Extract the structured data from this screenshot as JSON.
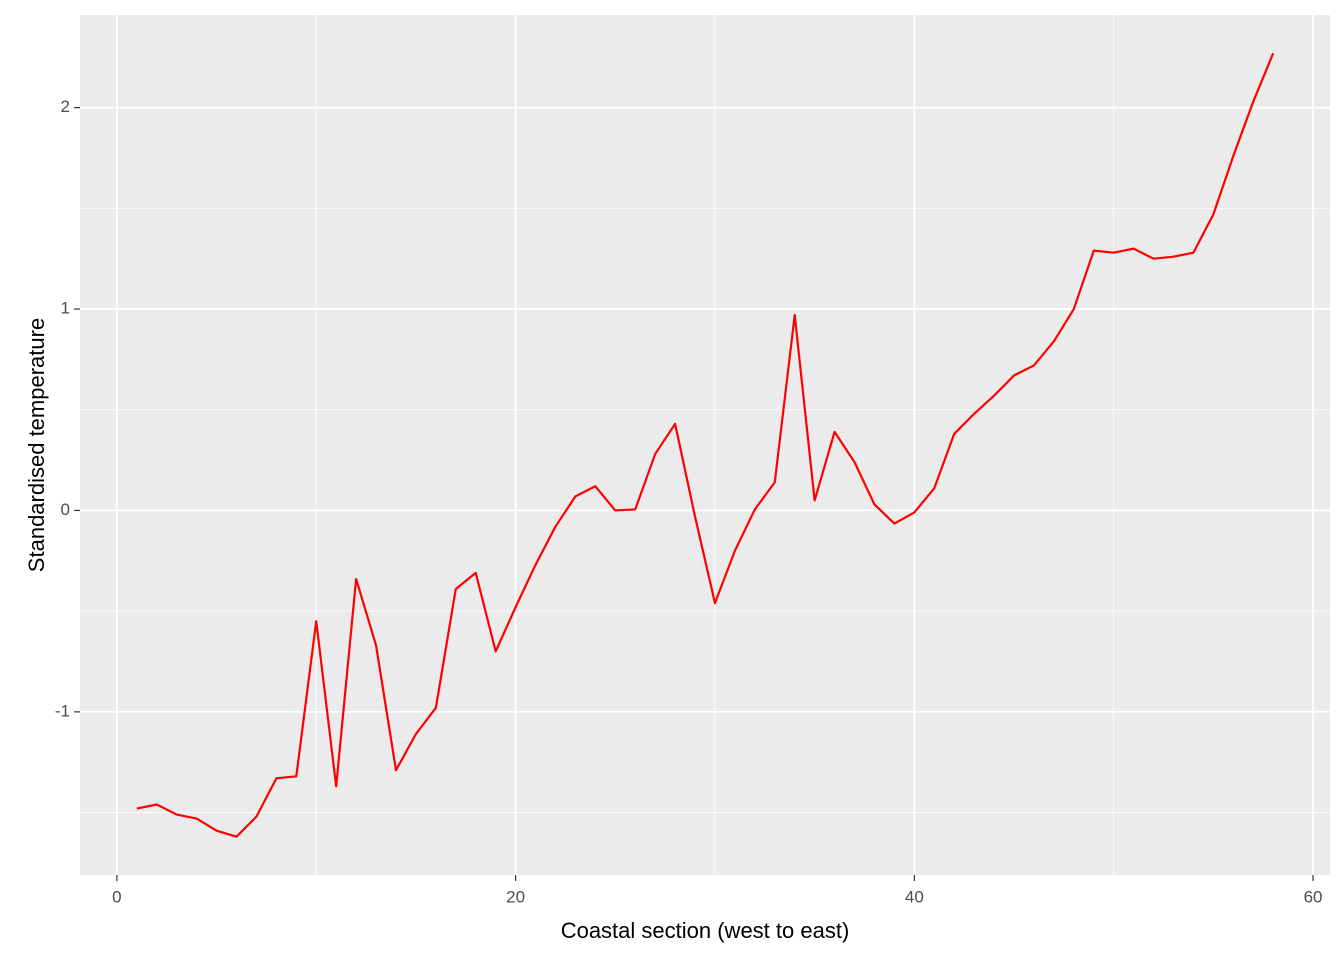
{
  "chart_data": {
    "type": "line",
    "x_label": "Coastal section (west to east)",
    "y_label": "Standardised temperature",
    "x": [
      1,
      2,
      3,
      4,
      5,
      6,
      7,
      8,
      9,
      10,
      11,
      12,
      13,
      14,
      15,
      16,
      17,
      18,
      19,
      20,
      21,
      22,
      23,
      24,
      25,
      26,
      27,
      28,
      29,
      30,
      31,
      32,
      33,
      34,
      35,
      36,
      37,
      38,
      39,
      40,
      41,
      42,
      43,
      44,
      45,
      46,
      47,
      48,
      49,
      50,
      51,
      52,
      53,
      54,
      55,
      56,
      57,
      58
    ],
    "series": [
      {
        "name": "temperature",
        "color": "#ff0000",
        "values": [
          -1.48,
          -1.46,
          -1.51,
          -1.53,
          -1.59,
          -1.62,
          -1.52,
          -1.33,
          -1.32,
          -0.55,
          -1.37,
          -0.34,
          -0.67,
          -1.29,
          -1.11,
          -0.98,
          -0.39,
          -0.31,
          -0.7,
          -0.48,
          -0.27,
          -0.08,
          0.07,
          0.12,
          0.0,
          0.005,
          0.28,
          0.43,
          -0.03,
          -0.46,
          -0.2,
          0.005,
          0.14,
          0.97,
          0.05,
          0.39,
          0.24,
          0.03,
          -0.065,
          -0.01,
          0.11,
          0.38,
          0.48,
          0.57,
          0.67,
          0.72,
          0.84,
          1.0,
          1.29,
          1.28,
          1.3,
          1.25,
          1.26,
          1.28,
          1.47,
          1.76,
          2.03,
          2.27
        ]
      }
    ],
    "xlim": [
      -1.85,
      60.85
    ],
    "ylim": [
      -1.81,
      2.46
    ],
    "xticks": [
      0,
      20,
      40,
      60
    ],
    "yticks": [
      -1,
      0,
      1,
      2
    ],
    "x_minor_grid": [
      10,
      30,
      50
    ],
    "y_minor_grid": [
      -1.5,
      -0.5,
      0.5,
      1.5
    ],
    "grid": true,
    "panel_color": "#ebebeb"
  }
}
